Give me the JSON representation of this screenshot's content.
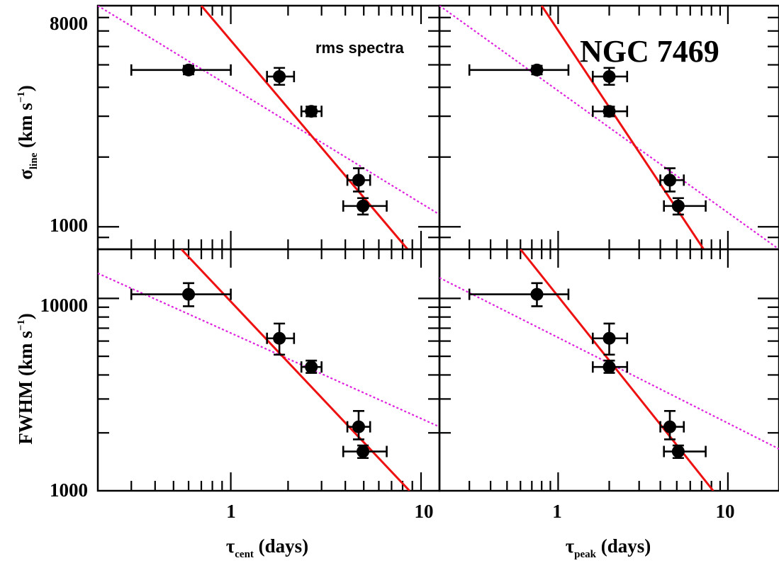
{
  "chart_data": [
    {
      "type": "scatter",
      "panel": "top-left",
      "xscale": "log",
      "yscale": "log",
      "xlim": [
        0.2,
        12.5
      ],
      "ylim": [
        800,
        9000
      ],
      "points": [
        {
          "x": 0.6,
          "y": 4750,
          "xerr": [
            0.3,
            1.0
          ],
          "yerr": [
            4550,
            4950
          ]
        },
        {
          "x": 1.8,
          "y": 4450,
          "xerr": [
            1.55,
            2.15
          ],
          "yerr": [
            4100,
            4850
          ]
        },
        {
          "x": 2.65,
          "y": 3150,
          "xerr": [
            2.35,
            3.0
          ],
          "yerr": [
            3000,
            3300
          ]
        },
        {
          "x": 4.7,
          "y": 1590,
          "xerr": [
            4.1,
            5.4
          ],
          "yerr": [
            1420,
            1790
          ]
        },
        {
          "x": 4.95,
          "y": 1230,
          "xerr": [
            3.9,
            6.6
          ],
          "yerr": [
            1130,
            1330
          ]
        }
      ],
      "fit_solid": [
        [
          0.7,
          9000
        ],
        [
          8.5,
          800
        ]
      ],
      "fit_dotted": [
        [
          0.2,
          9000
        ],
        [
          12.5,
          1130
        ]
      ]
    },
    {
      "type": "scatter",
      "panel": "top-right",
      "xscale": "log",
      "yscale": "log",
      "xlim": [
        0.2,
        20
      ],
      "ylim": [
        800,
        9000
      ],
      "points": [
        {
          "x": 0.75,
          "y": 4750,
          "xerr": [
            0.3,
            1.15
          ],
          "yerr": [
            4550,
            4950
          ]
        },
        {
          "x": 2.0,
          "y": 4450,
          "xerr": [
            1.6,
            2.55
          ],
          "yerr": [
            4100,
            4850
          ]
        },
        {
          "x": 2.0,
          "y": 3150,
          "xerr": [
            1.6,
            2.55
          ],
          "yerr": [
            3000,
            3300
          ]
        },
        {
          "x": 4.55,
          "y": 1590,
          "xerr": [
            4.0,
            5.5
          ],
          "yerr": [
            1420,
            1790
          ]
        },
        {
          "x": 5.1,
          "y": 1230,
          "xerr": [
            4.2,
            7.4
          ],
          "yerr": [
            1130,
            1330
          ]
        }
      ],
      "fit_solid": [
        [
          0.8,
          9000
        ],
        [
          7.2,
          800
        ]
      ],
      "fit_dotted": [
        [
          0.2,
          9000
        ],
        [
          20,
          800
        ]
      ]
    },
    {
      "type": "scatter",
      "panel": "bottom-left",
      "xscale": "log",
      "yscale": "log",
      "xlim": [
        0.2,
        12.5
      ],
      "ylim": [
        1000,
        18000
      ],
      "points": [
        {
          "x": 0.6,
          "y": 10500,
          "xerr": [
            0.3,
            1.0
          ],
          "yerr": [
            9100,
            12000
          ]
        },
        {
          "x": 1.8,
          "y": 6200,
          "xerr": [
            1.55,
            2.15
          ],
          "yerr": [
            5100,
            7400
          ]
        },
        {
          "x": 2.65,
          "y": 4400,
          "xerr": [
            2.35,
            3.0
          ],
          "yerr": [
            4100,
            4750
          ]
        },
        {
          "x": 4.7,
          "y": 2150,
          "xerr": [
            4.1,
            5.4
          ],
          "yerr": [
            1850,
            2600
          ]
        },
        {
          "x": 4.95,
          "y": 1600,
          "xerr": [
            3.9,
            6.6
          ],
          "yerr": [
            1480,
            1720
          ]
        }
      ],
      "fit_solid": [
        [
          0.55,
          18000
        ],
        [
          8.7,
          1000
        ]
      ],
      "fit_dotted": [
        [
          0.2,
          13500
        ],
        [
          12.5,
          2150
        ]
      ]
    },
    {
      "type": "scatter",
      "panel": "bottom-right",
      "xscale": "log",
      "yscale": "log",
      "xlim": [
        0.2,
        20
      ],
      "ylim": [
        1000,
        18000
      ],
      "points": [
        {
          "x": 0.75,
          "y": 10500,
          "xerr": [
            0.3,
            1.15
          ],
          "yerr": [
            9100,
            12000
          ]
        },
        {
          "x": 2.0,
          "y": 6200,
          "xerr": [
            1.6,
            2.55
          ],
          "yerr": [
            5100,
            7400
          ]
        },
        {
          "x": 2.0,
          "y": 4400,
          "xerr": [
            1.6,
            2.55
          ],
          "yerr": [
            4100,
            4750
          ]
        },
        {
          "x": 4.55,
          "y": 2150,
          "xerr": [
            4.0,
            5.5
          ],
          "yerr": [
            1850,
            2600
          ]
        },
        {
          "x": 5.1,
          "y": 1600,
          "xerr": [
            4.2,
            7.4
          ],
          "yerr": [
            1480,
            1720
          ]
        }
      ],
      "fit_solid": [
        [
          0.6,
          18000
        ],
        [
          8.2,
          1000
        ]
      ],
      "fit_dotted": [
        [
          0.2,
          12800
        ],
        [
          20,
          1650
        ]
      ]
    }
  ],
  "labels": {
    "annotation_small": "rms spectra",
    "annotation_big": "NGC 7469",
    "ylabel_top_main": "σ",
    "ylabel_top_sub": "line",
    "ylabel_top_unit": " (km s",
    "ylabel_top_exp": "−1",
    "ylabel_top_close": ")",
    "ylabel_bottom_main": "FWHM (km s",
    "ylabel_bottom_exp": "−1",
    "ylabel_bottom_close": ")",
    "xlabel_left_main": "τ",
    "xlabel_left_sub": "cent",
    "xlabel_left_unit": " (days)",
    "xlabel_right_main": "τ",
    "xlabel_right_sub": "peak",
    "xlabel_right_unit": " (days)",
    "yticks_top": [
      "8000",
      "1000"
    ],
    "yticks_bottom": [
      "10000",
      "1000"
    ],
    "xticks_left": [
      "1",
      "10"
    ],
    "xticks_right": [
      "1",
      "10"
    ]
  },
  "colors": {
    "fit_solid": "#ee1111",
    "fit_dotted": "#e020e0",
    "points": "#000000"
  }
}
